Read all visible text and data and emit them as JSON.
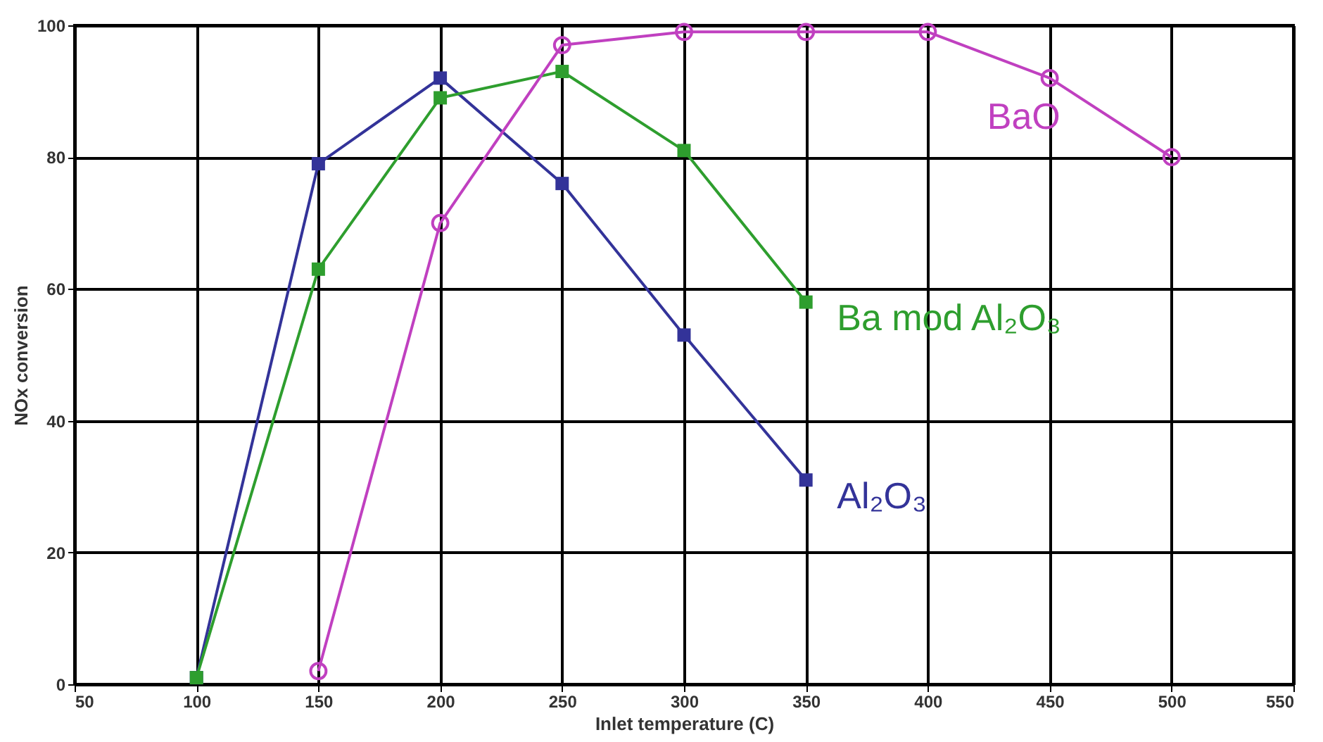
{
  "chart_data": {
    "type": "line",
    "xlabel": "Inlet temperature (C)",
    "ylabel": "NOx conversion",
    "xlim": [
      50,
      550
    ],
    "xticks": [
      50,
      100,
      150,
      200,
      250,
      300,
      350,
      400,
      450,
      500,
      550
    ],
    "ylim": [
      0,
      100
    ],
    "yticks": [
      0,
      20,
      40,
      60,
      80,
      100
    ],
    "grid": true,
    "legend": false,
    "series": [
      {
        "name": "Al₂O₃",
        "color": "#333399",
        "marker": "square",
        "x": [
          100,
          150,
          200,
          250,
          300,
          350
        ],
        "values": [
          1,
          79,
          92,
          76,
          53,
          31
        ]
      },
      {
        "name": "Ba mod Al₂O₃",
        "color": "#2e9e2e",
        "marker": "square",
        "x": [
          100,
          150,
          200,
          250,
          300,
          350
        ],
        "values": [
          1,
          63,
          89,
          93,
          81,
          58
        ]
      },
      {
        "name": "BaO",
        "color": "#c040c0",
        "marker": "circle",
        "x": [
          150,
          200,
          250,
          300,
          350,
          400,
          450,
          500
        ],
        "values": [
          2,
          70,
          97,
          99,
          99,
          99,
          92,
          80
        ]
      }
    ]
  }
}
